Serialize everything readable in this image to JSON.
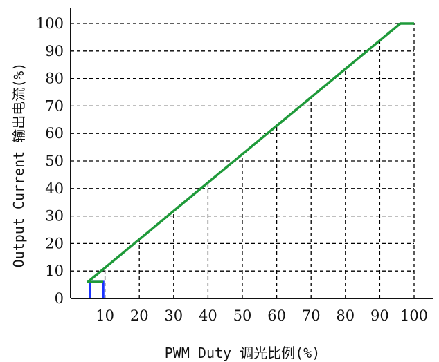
{
  "chart_data": {
    "type": "line",
    "xlabel": "PWM Duty 调光比例(%)",
    "ylabel": "Output Current 输出电流(%)",
    "xlim": [
      0,
      100
    ],
    "ylim": [
      0,
      100
    ],
    "x_ticks": [
      "10",
      "20",
      "30",
      "40",
      "50",
      "60",
      "70",
      "80",
      "90",
      "100"
    ],
    "y_ticks": [
      "0",
      "10",
      "20",
      "30",
      "40",
      "50",
      "60",
      "70",
      "80",
      "90",
      "100"
    ],
    "grid": true,
    "colors": {
      "line": "#1f9a3a",
      "pulse": "#1a33ff",
      "grid": "#000000"
    },
    "series": [
      {
        "x": [
          4,
          5,
          96,
          100
        ],
        "y": [
          6,
          6,
          100,
          100
        ]
      }
    ],
    "pulse_marker": {
      "x": [
        0,
        0,
        0.5,
        0.5,
        4.5,
        4.5
      ],
      "y": [
        0,
        6,
        6,
        6,
        6,
        0
      ]
    }
  }
}
